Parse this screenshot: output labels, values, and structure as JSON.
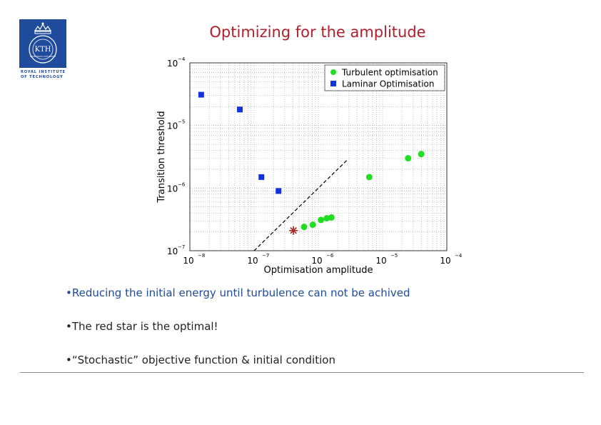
{
  "logo": {
    "icon": "kth-crest-icon",
    "name": "KTH",
    "motto": "VETENSKAP OCH KONST",
    "subtitle_line1": "ROYAL INSTITUTE",
    "subtitle_line2": "OF TECHNOLOGY",
    "color": "#1f4b9c"
  },
  "slide": {
    "title": "Optimizing for the amplitude",
    "title_color": "#b0202c"
  },
  "chart_data": {
    "type": "scatter",
    "xlabel": "Optimisation amplitude",
    "ylabel": "Transition threshold",
    "xscale": "log",
    "yscale": "log",
    "xlim": [
      1e-08,
      0.0001
    ],
    "ylim": [
      1e-07,
      0.0001
    ],
    "grid": true,
    "legend_position": "top-right",
    "x_ticks": [
      {
        "value": 1e-08,
        "base": "10",
        "exp": "−8"
      },
      {
        "value": 1e-07,
        "base": "10",
        "exp": "−7"
      },
      {
        "value": 1e-06,
        "base": "10",
        "exp": "−6"
      },
      {
        "value": 1e-05,
        "base": "10",
        "exp": "−5"
      },
      {
        "value": 0.0001,
        "base": "10",
        "exp": "−4"
      }
    ],
    "y_ticks": [
      {
        "value": 1e-07,
        "base": "10",
        "exp": "−7"
      },
      {
        "value": 1e-06,
        "base": "10",
        "exp": "−6"
      },
      {
        "value": 1e-05,
        "base": "10",
        "exp": "−5"
      },
      {
        "value": 0.0001,
        "base": "10",
        "exp": "−4"
      }
    ],
    "series": [
      {
        "name": "Turbulent optimisation",
        "marker": "circle",
        "color": "#22dd22",
        "points": [
          [
            6e-07,
            2.4e-07
          ],
          [
            8.2e-07,
            2.6e-07
          ],
          [
            1.1e-06,
            3.1e-07
          ],
          [
            1.35e-06,
            3.3e-07
          ],
          [
            1.6e-06,
            3.4e-07
          ],
          [
            6.2e-06,
            1.5e-06
          ],
          [
            2.5e-05,
            3e-06
          ],
          [
            4e-05,
            3.5e-06
          ]
        ]
      },
      {
        "name": "Laminar Optimisation",
        "marker": "square",
        "color": "#1133dd",
        "points": [
          [
            1.5e-08,
            3.1e-05
          ],
          [
            6e-08,
            1.8e-05
          ],
          [
            1.3e-07,
            1.5e-06
          ],
          [
            2.4e-07,
            9e-07
          ]
        ]
      }
    ],
    "optimal": {
      "x": 4.1e-07,
      "y": 2.1e-07,
      "marker": "star",
      "color": "#b22222"
    },
    "reference_line": {
      "style": "dashed",
      "x_start": 1e-07,
      "y_start": 1e-07,
      "x_end": 2.8e-06,
      "y_end": 2.8e-06
    }
  },
  "bullets": [
    {
      "marker": "•",
      "text": "Reducing the initial energy until turbulence can not be achived"
    },
    {
      "marker": "•",
      "text": "The red star is the optimal!"
    },
    {
      "marker": "•",
      "text": "“Stochastic” objective function & initial condition"
    }
  ]
}
